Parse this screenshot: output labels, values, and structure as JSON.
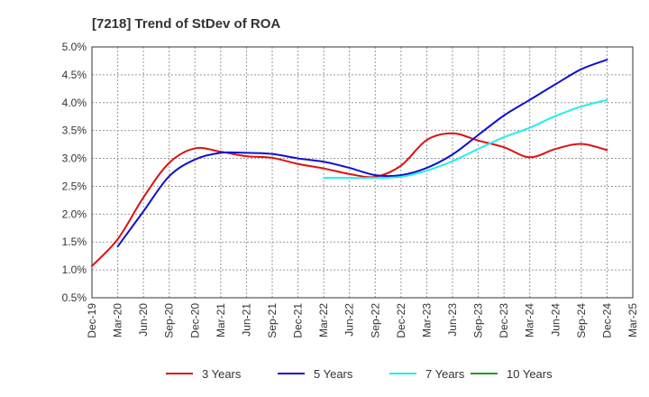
{
  "chart_data": {
    "type": "line",
    "title": "[7218]  Trend of StDev of ROA",
    "xlabel": "",
    "ylabel": "",
    "ylim": [
      0.5,
      5.0
    ],
    "y_ticks": [
      "0.5%",
      "1.0%",
      "1.5%",
      "2.0%",
      "2.5%",
      "3.0%",
      "3.5%",
      "4.0%",
      "4.5%",
      "5.0%"
    ],
    "y_tick_values": [
      0.5,
      1.0,
      1.5,
      2.0,
      2.5,
      3.0,
      3.5,
      4.0,
      4.5,
      5.0
    ],
    "categories": [
      "Dec-19",
      "Mar-20",
      "Jun-20",
      "Sep-20",
      "Dec-20",
      "Mar-21",
      "Jun-21",
      "Sep-21",
      "Dec-21",
      "Mar-22",
      "Jun-22",
      "Sep-22",
      "Dec-22",
      "Mar-23",
      "Jun-23",
      "Sep-23",
      "Dec-23",
      "Mar-24",
      "Jun-24",
      "Sep-24",
      "Dec-24",
      "Mar-25"
    ],
    "grid": true,
    "legend_position": "bottom",
    "series": [
      {
        "name": "3 Years",
        "color": "#dd1111",
        "values": [
          1.07,
          1.55,
          2.3,
          2.92,
          3.18,
          3.12,
          3.04,
          3.01,
          2.9,
          2.82,
          2.72,
          2.67,
          2.87,
          3.33,
          3.45,
          3.32,
          3.2,
          3.02,
          3.17,
          3.26,
          3.15,
          null
        ]
      },
      {
        "name": "5 Years",
        "color": "#1111cc",
        "values": [
          null,
          1.42,
          2.05,
          2.68,
          2.98,
          3.1,
          3.1,
          3.08,
          3.0,
          2.94,
          2.83,
          2.7,
          2.7,
          2.83,
          3.07,
          3.42,
          3.77,
          4.05,
          4.33,
          4.6,
          4.77,
          null
        ]
      },
      {
        "name": "7 Years",
        "color": "#22eeee",
        "values": [
          null,
          null,
          null,
          null,
          null,
          null,
          null,
          null,
          null,
          2.65,
          2.65,
          2.65,
          2.67,
          2.78,
          2.95,
          3.17,
          3.38,
          3.55,
          3.76,
          3.93,
          4.05,
          null
        ]
      },
      {
        "name": "10 Years",
        "color": "#229922",
        "values": [
          null,
          null,
          null,
          null,
          null,
          null,
          null,
          null,
          null,
          null,
          null,
          null,
          null,
          null,
          null,
          null,
          null,
          null,
          null,
          null,
          null,
          null
        ]
      }
    ]
  }
}
